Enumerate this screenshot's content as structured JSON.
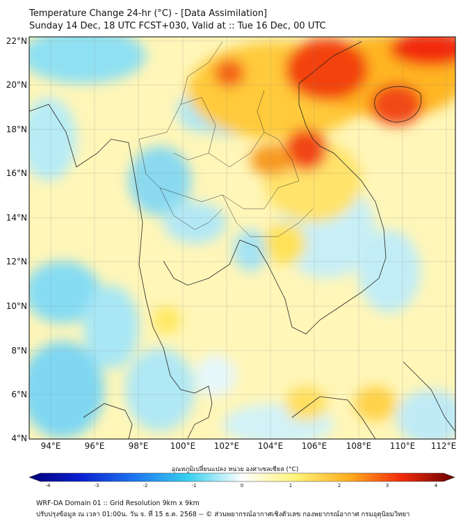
{
  "header": {
    "title_line1": "Temperature Change 24-hr (°C) - [Data Assimilation]",
    "title_line2": "Sunday 14 Dec, 18 UTC FCST+030, Valid at :: Tue 16 Dec, 00 UTC"
  },
  "map": {
    "lon_labels": [
      "94°E",
      "96°E",
      "98°E",
      "100°E",
      "102°E",
      "104°E",
      "106°E",
      "108°E",
      "110°E",
      "112°E"
    ],
    "lat_labels": [
      "22°N",
      "20°N",
      "18°N",
      "16°N",
      "14°N",
      "12°N",
      "10°N",
      "8°N",
      "6°N",
      "4°N"
    ],
    "lon_range": [
      93,
      112.3
    ],
    "lat_range": [
      4,
      22.2
    ]
  },
  "colorbar": {
    "title": "อุณหภูมิเปลี่ยนแปลง หน่วย องศาเซลเซียส (°C)",
    "ticks": [
      "-4",
      "-3",
      "-2",
      "-1",
      "0",
      "1",
      "2",
      "3",
      "4"
    ],
    "range": [
      -4,
      4
    ]
  },
  "footer": {
    "line1": "WRF-DA Domain 01 :: Grid Resolution 9km x 9km",
    "line2": "ปรับปรุงข้อมูล ณ เวลา 01:00น. วัน จ. ที่ 15 ธ.ค. 2568 -- © ส่วนพยากรณ์อากาศเชิงตัวเลข กองพยากรณ์อากาศ กรมอุตุนิยมวิทยา"
  }
}
